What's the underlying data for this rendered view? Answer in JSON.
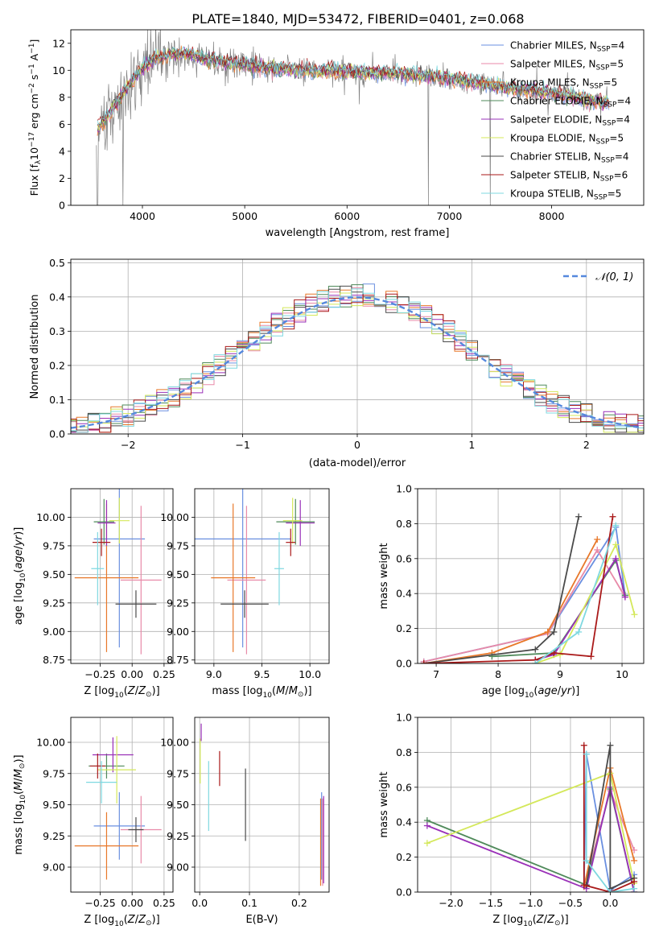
{
  "figure_title": "PLATE=1840, MJD=53472, FIBERID=0401, z=0.068",
  "colors": {
    "Chabrier MILES": "#6a8fe0",
    "Salpeter MILES": "#e88aa8",
    "Kroupa MILES": "#e8782a",
    "Chabrier ELODIE": "#4f8a5a",
    "Salpeter ELODIE": "#9a30b8",
    "Kroupa ELODIE": "#d4e85a",
    "Chabrier STELIB": "#4a4a4a",
    "Salpeter STELIB": "#aa1a1a",
    "Kroupa STELIB": "#7fd8e0",
    "data": "#808080",
    "normal_curve": "#5588dd"
  },
  "legend_entries": [
    {
      "name": "Chabrier MILES",
      "label": "Chabrier MILES, N",
      "sub": "SSP",
      "tail": "=4"
    },
    {
      "name": "Salpeter MILES",
      "label": "Salpeter MILES, N",
      "sub": "SSP",
      "tail": "=5"
    },
    {
      "name": "Kroupa MILES",
      "label": "Kroupa MILES, N",
      "sub": "SSP",
      "tail": "=5"
    },
    {
      "name": "Chabrier ELODIE",
      "label": "Chabrier ELODIE, N",
      "sub": "SSP",
      "tail": "=4"
    },
    {
      "name": "Salpeter ELODIE",
      "label": "Salpeter ELODIE, N",
      "sub": "SSP",
      "tail": "=4"
    },
    {
      "name": "Kroupa ELODIE",
      "label": "Kroupa ELODIE, N",
      "sub": "SSP",
      "tail": "=5"
    },
    {
      "name": "Chabrier STELIB",
      "label": "Chabrier STELIB, N",
      "sub": "SSP",
      "tail": "=4"
    },
    {
      "name": "Salpeter STELIB",
      "label": "Salpeter STELIB, N",
      "sub": "SSP",
      "tail": "=6"
    },
    {
      "name": "Kroupa STELIB",
      "label": "Kroupa STELIB, N",
      "sub": "SSP",
      "tail": "=5"
    }
  ],
  "chart_data": [
    {
      "id": "spectrum",
      "type": "line",
      "xlabel": "wavelength [Angstrom, rest frame]",
      "ylabel": "Flux [f_λ 10^-17 erg cm^-2 s^-1 A^-1]",
      "xlim": [
        3300,
        8900
      ],
      "ylim": [
        0,
        13
      ],
      "xticks": [
        4000,
        5000,
        6000,
        7000,
        8000
      ],
      "yticks": [
        0,
        2,
        4,
        6,
        8,
        10,
        12
      ],
      "continuum": [
        [
          3550,
          5.6
        ],
        [
          3700,
          7.0
        ],
        [
          3800,
          8.2
        ],
        [
          3900,
          9.3
        ],
        [
          4000,
          10.2
        ],
        [
          4100,
          10.8
        ],
        [
          4200,
          11.0
        ],
        [
          4400,
          11.3
        ],
        [
          4600,
          10.9
        ],
        [
          4800,
          10.6
        ],
        [
          5000,
          10.4
        ],
        [
          5200,
          10.2
        ],
        [
          5500,
          10.0
        ],
        [
          6000,
          9.9
        ],
        [
          6500,
          9.8
        ],
        [
          7000,
          9.4
        ],
        [
          7500,
          8.8
        ],
        [
          8000,
          8.3
        ],
        [
          8500,
          7.6
        ]
      ],
      "grid": false
    },
    {
      "id": "residual_histogram",
      "type": "histogram",
      "xlabel": "(data-model)/error",
      "ylabel": "Normed distribution",
      "xlim": [
        -2.5,
        2.5
      ],
      "ylim": [
        0,
        0.51
      ],
      "xticks": [
        -2,
        -1,
        0,
        1,
        2
      ],
      "yticks": [
        0.0,
        0.1,
        0.2,
        0.3,
        0.4,
        0.5
      ],
      "bin_width": 0.1,
      "overlay": {
        "label": "N(0,1)",
        "type": "normal_pdf",
        "mu": 0,
        "sigma": 1
      },
      "grid": true
    },
    {
      "id": "age_vs_Z",
      "type": "errorbar",
      "xlabel": "Z [log10(Z/Z⊙)]",
      "ylabel": "age [log10(age/yr)]",
      "xlim": [
        -0.48,
        0.32
      ],
      "ylim": [
        8.72,
        10.25
      ],
      "xticks": [
        -0.25,
        0.0,
        0.25
      ],
      "yticks": [
        8.75,
        9.0,
        9.25,
        9.5,
        9.75,
        10.0
      ],
      "points": [
        {
          "model": "Chabrier MILES",
          "x": -0.1,
          "xerr": 0.2,
          "y": 9.81,
          "yerr": 0.95
        },
        {
          "model": "Salpeter MILES",
          "x": 0.07,
          "xerr": 0.16,
          "y": 9.45,
          "yerr": 0.65
        },
        {
          "model": "Kroupa MILES",
          "x": -0.2,
          "xerr": 0.25,
          "y": 9.47,
          "yerr": 0.65
        },
        {
          "model": "Chabrier ELODIE",
          "x": -0.22,
          "xerr": 0.08,
          "y": 9.96,
          "yerr": 0.2
        },
        {
          "model": "Salpeter ELODIE",
          "x": -0.2,
          "xerr": 0.07,
          "y": 9.95,
          "yerr": 0.2
        },
        {
          "model": "Kroupa ELODIE",
          "x": -0.1,
          "xerr": 0.08,
          "y": 9.97,
          "yerr": 0.2
        },
        {
          "model": "Chabrier STELIB",
          "x": 0.03,
          "xerr": 0.16,
          "y": 9.24,
          "yerr": 0.12
        },
        {
          "model": "Salpeter STELIB",
          "x": -0.24,
          "xerr": 0.07,
          "y": 9.78,
          "yerr": 0.12
        },
        {
          "model": "Kroupa STELIB",
          "x": -0.27,
          "xerr": 0.05,
          "y": 9.55,
          "yerr": 0.32
        }
      ],
      "grid": true
    },
    {
      "id": "age_vs_mass",
      "type": "errorbar",
      "xlabel": "mass [log10(M/M⊙)]",
      "ylabel": "",
      "xlim": [
        8.8,
        10.2
      ],
      "ylim": [
        8.72,
        10.25
      ],
      "xticks": [
        9.0,
        9.5,
        10.0
      ],
      "yticks": [
        8.75,
        9.0,
        9.25,
        9.5,
        9.75,
        10.0
      ],
      "points": [
        {
          "model": "Chabrier MILES",
          "x": 9.3,
          "xerr": 0.5,
          "y": 9.81,
          "yerr": 0.95
        },
        {
          "model": "Salpeter MILES",
          "x": 9.34,
          "xerr": 0.2,
          "y": 9.45,
          "yerr": 0.65
        },
        {
          "model": "Kroupa MILES",
          "x": 9.2,
          "xerr": 0.23,
          "y": 9.47,
          "yerr": 0.65
        },
        {
          "model": "Chabrier ELODIE",
          "x": 9.85,
          "xerr": 0.2,
          "y": 9.96,
          "yerr": 0.2
        },
        {
          "model": "Salpeter ELODIE",
          "x": 9.9,
          "xerr": 0.15,
          "y": 9.95,
          "yerr": 0.2
        },
        {
          "model": "Kroupa ELODIE",
          "x": 9.82,
          "xerr": 0.1,
          "y": 9.97,
          "yerr": 0.2
        },
        {
          "model": "Chabrier STELIB",
          "x": 9.32,
          "xerr": 0.25,
          "y": 9.24,
          "yerr": 0.12
        },
        {
          "model": "Salpeter STELIB",
          "x": 9.8,
          "xerr": 0.05,
          "y": 9.78,
          "yerr": 0.12
        },
        {
          "model": "Kroupa STELIB",
          "x": 9.68,
          "xerr": 0.05,
          "y": 9.55,
          "yerr": 0.32
        }
      ],
      "grid": true
    },
    {
      "id": "mass_weight_vs_age",
      "type": "line",
      "xlabel": "age [log10(age/yr)]",
      "ylabel": "mass weight",
      "xlim": [
        6.7,
        10.35
      ],
      "ylim": [
        0,
        1.0
      ],
      "xticks": [
        7,
        8,
        9,
        10
      ],
      "yticks": [
        0.0,
        0.2,
        0.4,
        0.6,
        0.8,
        1.0
      ],
      "series": [
        {
          "name": "Chabrier MILES",
          "x": [
            6.8,
            8.8,
            9.9,
            10.05
          ],
          "y": [
            0.01,
            0.17,
            0.78,
            0.39
          ]
        },
        {
          "name": "Salpeter MILES",
          "x": [
            6.8,
            8.8,
            9.6,
            10.05
          ],
          "y": [
            0.01,
            0.17,
            0.65,
            0.38
          ]
        },
        {
          "name": "Kroupa MILES",
          "x": [
            6.8,
            7.9,
            8.8,
            9.6
          ],
          "y": [
            0.0,
            0.06,
            0.18,
            0.71
          ]
        },
        {
          "name": "Chabrier ELODIE",
          "x": [
            7.9,
            8.9,
            9.9,
            10.05
          ],
          "y": [
            0.04,
            0.06,
            0.59,
            0.39
          ]
        },
        {
          "name": "Salpeter ELODIE",
          "x": [
            8.6,
            8.9,
            9.9,
            10.05
          ],
          "y": [
            0.02,
            0.05,
            0.6,
            0.38
          ]
        },
        {
          "name": "Kroupa ELODIE",
          "x": [
            8.6,
            9.0,
            9.9,
            10.2
          ],
          "y": [
            0.0,
            0.05,
            0.68,
            0.28
          ]
        },
        {
          "name": "Chabrier STELIB",
          "x": [
            6.8,
            8.6,
            8.9,
            9.3
          ],
          "y": [
            0.0,
            0.08,
            0.18,
            0.84
          ]
        },
        {
          "name": "Salpeter STELIB",
          "x": [
            6.8,
            8.6,
            8.9,
            9.5,
            9.85
          ],
          "y": [
            0.0,
            0.02,
            0.06,
            0.04,
            0.84
          ]
        },
        {
          "name": "Kroupa STELIB",
          "x": [
            8.6,
            9.3,
            9.9
          ],
          "y": [
            0.0,
            0.18,
            0.79
          ]
        }
      ],
      "grid": true
    },
    {
      "id": "mass_vs_Z",
      "type": "errorbar",
      "xlabel": "Z [log10(Z/Z⊙)]",
      "ylabel": "mass [log10(M/M⊙)]",
      "xlim": [
        -0.48,
        0.32
      ],
      "ylim": [
        8.8,
        10.2
      ],
      "xticks": [
        -0.25,
        0.0,
        0.25
      ],
      "yticks": [
        9.0,
        9.25,
        9.5,
        9.75,
        10.0
      ],
      "points": [
        {
          "model": "Chabrier MILES",
          "x": -0.1,
          "xerr": 0.2,
          "y": 9.33,
          "yerr": 0.27
        },
        {
          "model": "Salpeter MILES",
          "x": 0.07,
          "xerr": 0.16,
          "y": 9.3,
          "yerr": 0.27
        },
        {
          "model": "Kroupa MILES",
          "x": -0.2,
          "xerr": 0.25,
          "y": 9.17,
          "yerr": 0.27
        },
        {
          "model": "Chabrier ELODIE",
          "x": -0.2,
          "xerr": 0.14,
          "y": 9.81,
          "yerr": 0.1
        },
        {
          "model": "Salpeter ELODIE",
          "x": -0.15,
          "xerr": 0.16,
          "y": 9.9,
          "yerr": 0.14
        },
        {
          "model": "Kroupa ELODIE",
          "x": -0.12,
          "xerr": 0.15,
          "y": 9.78,
          "yerr": 0.27
        },
        {
          "model": "Chabrier STELIB",
          "x": 0.03,
          "xerr": 0.06,
          "y": 9.3,
          "yerr": 0.1
        },
        {
          "model": "Salpeter STELIB",
          "x": -0.27,
          "xerr": 0.06,
          "y": 9.81,
          "yerr": 0.1
        },
        {
          "model": "Kroupa STELIB",
          "x": -0.24,
          "xerr": 0.12,
          "y": 9.68,
          "yerr": 0.17
        }
      ],
      "grid": true
    },
    {
      "id": "mass_vs_EBV",
      "type": "errorbar",
      "xlabel": "E(B-V)",
      "ylabel": "",
      "xlim": [
        -0.01,
        0.26
      ],
      "ylim": [
        8.8,
        10.2
      ],
      "xticks": [
        0.0,
        0.1,
        0.2
      ],
      "yticks": [
        9.0,
        9.25,
        9.5,
        9.75,
        10.0
      ],
      "points": [
        {
          "model": "Kroupa ELODIE",
          "x": 0.001,
          "y": 9.85,
          "yerr": 0.18
        },
        {
          "model": "Salpeter ELODIE",
          "x": 0.003,
          "y": 10.08,
          "yerr": 0.07
        },
        {
          "model": "Kroupa STELIB",
          "x": 0.018,
          "y": 9.57,
          "yerr": 0.28
        },
        {
          "model": "Salpeter STELIB",
          "x": 0.04,
          "y": 9.79,
          "yerr": 0.14
        },
        {
          "model": "Chabrier STELIB",
          "x": 0.092,
          "y": 9.5,
          "yerr": 0.29
        },
        {
          "model": "Chabrier MILES",
          "x": 0.245,
          "y": 9.25,
          "yerr": 0.35
        },
        {
          "model": "Salpeter MILES",
          "x": 0.247,
          "y": 9.2,
          "yerr": 0.35
        },
        {
          "model": "Kroupa MILES",
          "x": 0.243,
          "y": 9.2,
          "yerr": 0.35
        },
        {
          "model": "Salpeter ELODIE",
          "x": 0.249,
          "y": 9.22,
          "yerr": 0.35
        }
      ],
      "grid": true
    },
    {
      "id": "mass_weight_vs_Z",
      "type": "line",
      "xlabel": "Z [log10(Z/Z⊙)]",
      "ylabel": "mass weight",
      "xlim": [
        -2.42,
        0.42
      ],
      "ylim": [
        0,
        1.0
      ],
      "xticks": [
        -2.0,
        -1.5,
        -1.0,
        -0.5,
        0.0
      ],
      "yticks": [
        0.0,
        0.2,
        0.4,
        0.6,
        0.8,
        1.0
      ],
      "series": [
        {
          "name": "Chabrier MILES",
          "x": [
            -0.33,
            -0.3,
            0.0,
            0.3
          ],
          "y": [
            0.04,
            0.79,
            0.01,
            0.1
          ]
        },
        {
          "name": "Salpeter MILES",
          "x": [
            -0.33,
            0.0,
            0.3
          ],
          "y": [
            0.03,
            0.58,
            0.24
          ]
        },
        {
          "name": "Kroupa MILES",
          "x": [
            -0.33,
            0.0,
            0.3
          ],
          "y": [
            0.03,
            0.71,
            0.18
          ]
        },
        {
          "name": "Chabrier ELODIE",
          "x": [
            -2.3,
            -0.3,
            0.0,
            0.3
          ],
          "y": [
            0.41,
            0.04,
            0.59,
            0.0
          ]
        },
        {
          "name": "Salpeter ELODIE",
          "x": [
            -2.3,
            -0.3,
            0.0,
            0.3
          ],
          "y": [
            0.38,
            0.02,
            0.6,
            0.0
          ]
        },
        {
          "name": "Kroupa ELODIE",
          "x": [
            -2.3,
            0.0,
            0.3
          ],
          "y": [
            0.28,
            0.68,
            0.05
          ]
        },
        {
          "name": "Chabrier STELIB",
          "x": [
            -0.3,
            0.0,
            0.0,
            0.3
          ],
          "y": [
            0.04,
            0.84,
            0.02,
            0.08
          ]
        },
        {
          "name": "Salpeter STELIB",
          "x": [
            -0.33,
            -0.33,
            0.0,
            0.3
          ],
          "y": [
            0.84,
            0.04,
            0.0,
            0.06
          ]
        },
        {
          "name": "Kroupa STELIB",
          "x": [
            -0.3,
            -0.3,
            0.0,
            0.3
          ],
          "y": [
            0.79,
            0.18,
            0.0,
            0.02
          ]
        }
      ],
      "grid": true
    }
  ]
}
